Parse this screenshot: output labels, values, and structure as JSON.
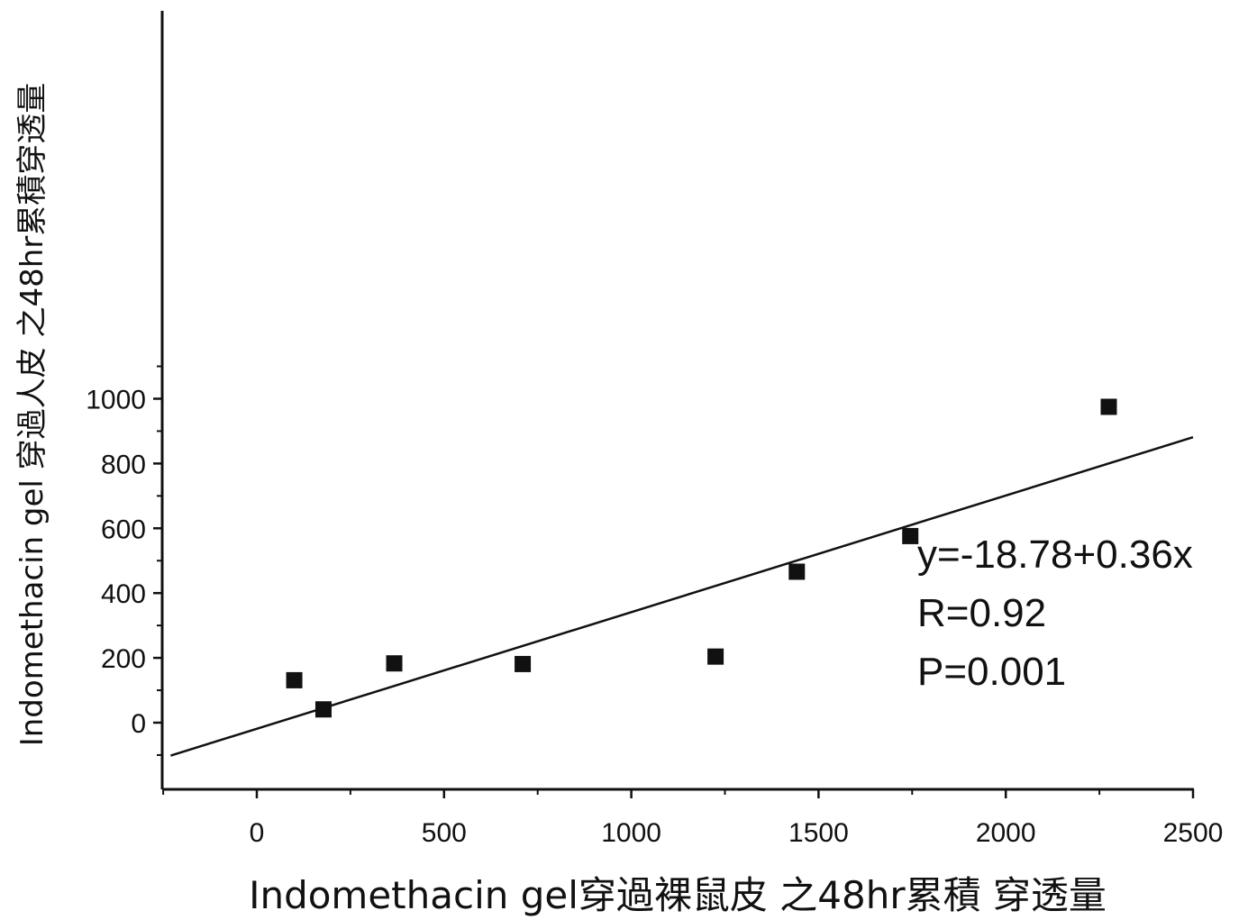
{
  "chart_data": {
    "type": "scatter",
    "xlabel": "Indomethacin gel穿過裸鼠皮 之48hr累積 穿透量",
    "ylabel": "Indomethacin gel 穿過人皮 之48hr累積穿透量",
    "xlim": [
      -250,
      2500
    ],
    "ylim": [
      -100,
      1100
    ],
    "x_ticks": [
      0,
      500,
      1000,
      1500,
      2000,
      2500
    ],
    "y_ticks": [
      0,
      200,
      400,
      600,
      800,
      1000
    ],
    "x_tick_labels": [
      "0",
      "500",
      "1000",
      "1500",
      "2000",
      "2500"
    ],
    "y_tick_labels": [
      "0",
      "200",
      "400",
      "600",
      "800",
      "1000"
    ],
    "marker": "filled-square",
    "points": [
      {
        "x": 100,
        "y": 131
      },
      {
        "x": 178,
        "y": 41
      },
      {
        "x": 367,
        "y": 183
      },
      {
        "x": 710,
        "y": 181
      },
      {
        "x": 1225,
        "y": 204
      },
      {
        "x": 1442,
        "y": 466
      },
      {
        "x": 1745,
        "y": 576
      },
      {
        "x": 2275,
        "y": 975
      }
    ],
    "fit_line": {
      "intercept": -18.78,
      "slope": 0.36,
      "x_range": [
        -230,
        2500
      ]
    },
    "annotations": [
      "y=-18.78+0.36x",
      "R=0.92",
      "P=0.001"
    ],
    "grid": false,
    "legend": "none"
  }
}
